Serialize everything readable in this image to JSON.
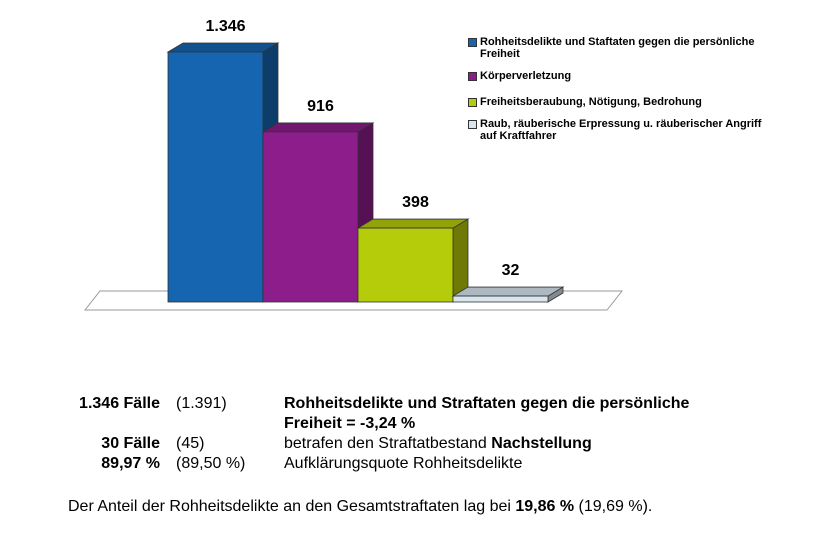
{
  "chart_data": {
    "type": "bar",
    "categories": [
      "Rohheitsdelikte und Staftaten gegen die persönliche Freiheit",
      "Körperverletzung",
      "Freiheitsberaubung, Nötigung, Bedrohung",
      "Raub, räuberische Erpressung u. räuberischer Angriff auf Kraftfahrer"
    ],
    "values": [
      1346,
      916,
      398,
      32
    ],
    "data_labels": [
      "1.346",
      "916",
      "398",
      "32"
    ],
    "colors": [
      "#1565b0",
      "#8e1d8c",
      "#b5cc0a",
      "#d8e6f0"
    ],
    "legend_position": "top-right",
    "grid": false
  },
  "legend": [
    {
      "label": "Rohheitsdelikte und Staftaten gegen die persönliche Freiheit",
      "color": "#1565b0"
    },
    {
      "label": "Körperverletzung",
      "color": "#8e1d8c"
    },
    {
      "label": "Freiheitsberaubung, Nötigung, Bedrohung",
      "color": "#b5cc0a"
    },
    {
      "label": "Raub, räuberische Erpressung u. räuberischer Angriff auf Kraftfahrer",
      "color": "#d8e6f0"
    }
  ],
  "stats": {
    "row1": {
      "count": "1.346 Fälle",
      "prev": "(1.391)",
      "desc_line1": "Rohheitsdelikte und Straftaten gegen die persönliche",
      "desc_line2": "Freiheit = -3,24 %"
    },
    "row2": {
      "count": "30 Fälle",
      "prev": "(45)",
      "desc_plain": "betrafen den Straftatbestand ",
      "desc_bold": "Nachstellung"
    },
    "row3": {
      "count": "89,97 %",
      "prev": "(89,50 %)",
      "desc": "Aufklärungsquote Rohheitsdelikte"
    }
  },
  "summary": {
    "prefix": "Der Anteil der Rohheitsdelikte an den Gesamtstraftaten lag bei ",
    "value": "19,86 %",
    "suffix": " (19,69 %)."
  }
}
